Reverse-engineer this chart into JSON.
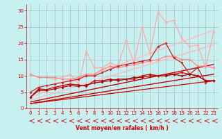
{
  "xlabel": "Vent moyen/en rafales ( km/h )",
  "bg_color": "#c8f0f0",
  "grid_color": "#a8c8c8",
  "xlim": [
    -0.5,
    23.5
  ],
  "ylim": [
    0,
    32
  ],
  "yticks": [
    0,
    5,
    10,
    15,
    20,
    25,
    30
  ],
  "xticks": [
    0,
    1,
    2,
    3,
    4,
    5,
    6,
    7,
    8,
    9,
    10,
    11,
    12,
    13,
    14,
    15,
    16,
    17,
    18,
    19,
    20,
    21,
    22,
    23
  ],
  "tick_color": "#cc0000",
  "lines": [
    {
      "x": [
        0,
        1,
        2,
        3,
        4,
        5,
        6,
        7,
        8,
        9,
        10,
        11,
        12,
        13,
        14,
        15,
        16,
        17,
        18,
        19,
        20,
        21,
        22,
        23
      ],
      "y": [
        10.5,
        9.5,
        9.5,
        9.0,
        9.5,
        10.5,
        7.5,
        17.5,
        12.5,
        12.5,
        14.0,
        13.0,
        21.0,
        14.0,
        25.0,
        17.0,
        29.5,
        26.5,
        27.0,
        21.5,
        19.0,
        19.5,
        12.5,
        23.5
      ],
      "color": "#ffaaaa",
      "lw": 0.9,
      "marker": "D",
      "ms": 2.0,
      "alpha": 1.0
    },
    {
      "x": [
        0,
        23
      ],
      "y": [
        3.5,
        24.0
      ],
      "color": "#ffbbbb",
      "lw": 1.0,
      "marker": null,
      "ms": 0,
      "alpha": 1.0
    },
    {
      "x": [
        0,
        23
      ],
      "y": [
        2.5,
        19.5
      ],
      "color": "#ffbbbb",
      "lw": 1.0,
      "marker": null,
      "ms": 0,
      "alpha": 1.0
    },
    {
      "x": [
        0,
        1,
        2,
        3,
        4,
        5,
        6,
        7,
        8,
        9,
        10,
        11,
        12,
        13,
        14,
        15,
        16,
        17,
        18,
        19,
        20,
        21,
        22,
        23
      ],
      "y": [
        10.5,
        9.5,
        9.5,
        9.5,
        9.0,
        9.0,
        9.5,
        10.5,
        10.5,
        12.0,
        13.0,
        12.5,
        13.0,
        13.5,
        14.0,
        14.5,
        15.0,
        16.0,
        16.0,
        15.0,
        15.0,
        13.0,
        13.0,
        12.5
      ],
      "color": "#ff8888",
      "lw": 0.9,
      "marker": "D",
      "ms": 2.0,
      "alpha": 1.0
    },
    {
      "x": [
        0,
        1,
        2,
        3,
        4,
        5,
        6,
        7,
        8,
        9,
        10,
        11,
        12,
        13,
        14,
        15,
        16,
        17,
        18,
        19,
        20,
        21,
        22,
        23
      ],
      "y": [
        5.0,
        6.5,
        7.0,
        7.5,
        8.0,
        8.5,
        9.0,
        10.0,
        10.0,
        11.0,
        12.0,
        13.0,
        13.5,
        14.0,
        14.5,
        15.0,
        19.0,
        20.0,
        15.5,
        14.0,
        10.5,
        12.5,
        8.0,
        8.5
      ],
      "color": "#cc2222",
      "lw": 0.9,
      "marker": "D",
      "ms": 2.0,
      "alpha": 1.0
    },
    {
      "x": [
        0,
        23
      ],
      "y": [
        2.0,
        13.5
      ],
      "color": "#cc0000",
      "lw": 1.0,
      "marker": null,
      "ms": 0,
      "alpha": 1.0
    },
    {
      "x": [
        0,
        1,
        2,
        3,
        4,
        5,
        6,
        7,
        8,
        9,
        10,
        11,
        12,
        13,
        14,
        15,
        16,
        17,
        18,
        19,
        20,
        21,
        22,
        23
      ],
      "y": [
        3.5,
        6.0,
        5.8,
        6.5,
        7.0,
        7.5,
        7.2,
        6.8,
        8.5,
        8.5,
        9.0,
        8.5,
        9.0,
        9.0,
        10.0,
        10.5,
        10.0,
        10.5,
        10.5,
        11.0,
        10.5,
        10.0,
        8.5,
        8.5
      ],
      "color": "#cc0000",
      "lw": 0.9,
      "marker": "D",
      "ms": 2.0,
      "alpha": 1.0
    },
    {
      "x": [
        0,
        23
      ],
      "y": [
        1.5,
        10.5
      ],
      "color": "#cc0000",
      "lw": 1.0,
      "marker": null,
      "ms": 0,
      "alpha": 1.0
    },
    {
      "x": [
        0,
        1,
        2,
        3,
        4,
        5,
        6,
        7,
        8,
        9,
        10,
        11,
        12,
        13,
        14,
        15,
        16,
        17,
        18,
        19,
        20,
        21,
        22,
        23
      ],
      "y": [
        3.5,
        5.5,
        5.5,
        6.0,
        6.5,
        7.0,
        6.8,
        7.2,
        7.8,
        8.2,
        8.5,
        9.0,
        9.0,
        9.5,
        9.5,
        10.0,
        10.0,
        10.0,
        10.5,
        10.0,
        10.5,
        10.0,
        8.5,
        8.5
      ],
      "color": "#aa0000",
      "lw": 0.9,
      "marker": "D",
      "ms": 2.0,
      "alpha": 1.0
    },
    {
      "x": [
        0,
        23
      ],
      "y": [
        1.5,
        8.5
      ],
      "color": "#cc0000",
      "lw": 0.9,
      "marker": null,
      "ms": 0,
      "alpha": 1.0
    }
  ],
  "arrows_x": [
    0,
    1,
    2,
    3,
    4,
    5,
    6,
    7,
    8,
    9,
    10,
    11,
    12,
    13,
    14,
    15,
    16,
    17,
    18,
    19,
    20,
    21,
    22,
    23
  ],
  "arrow_color": "#cc0000"
}
